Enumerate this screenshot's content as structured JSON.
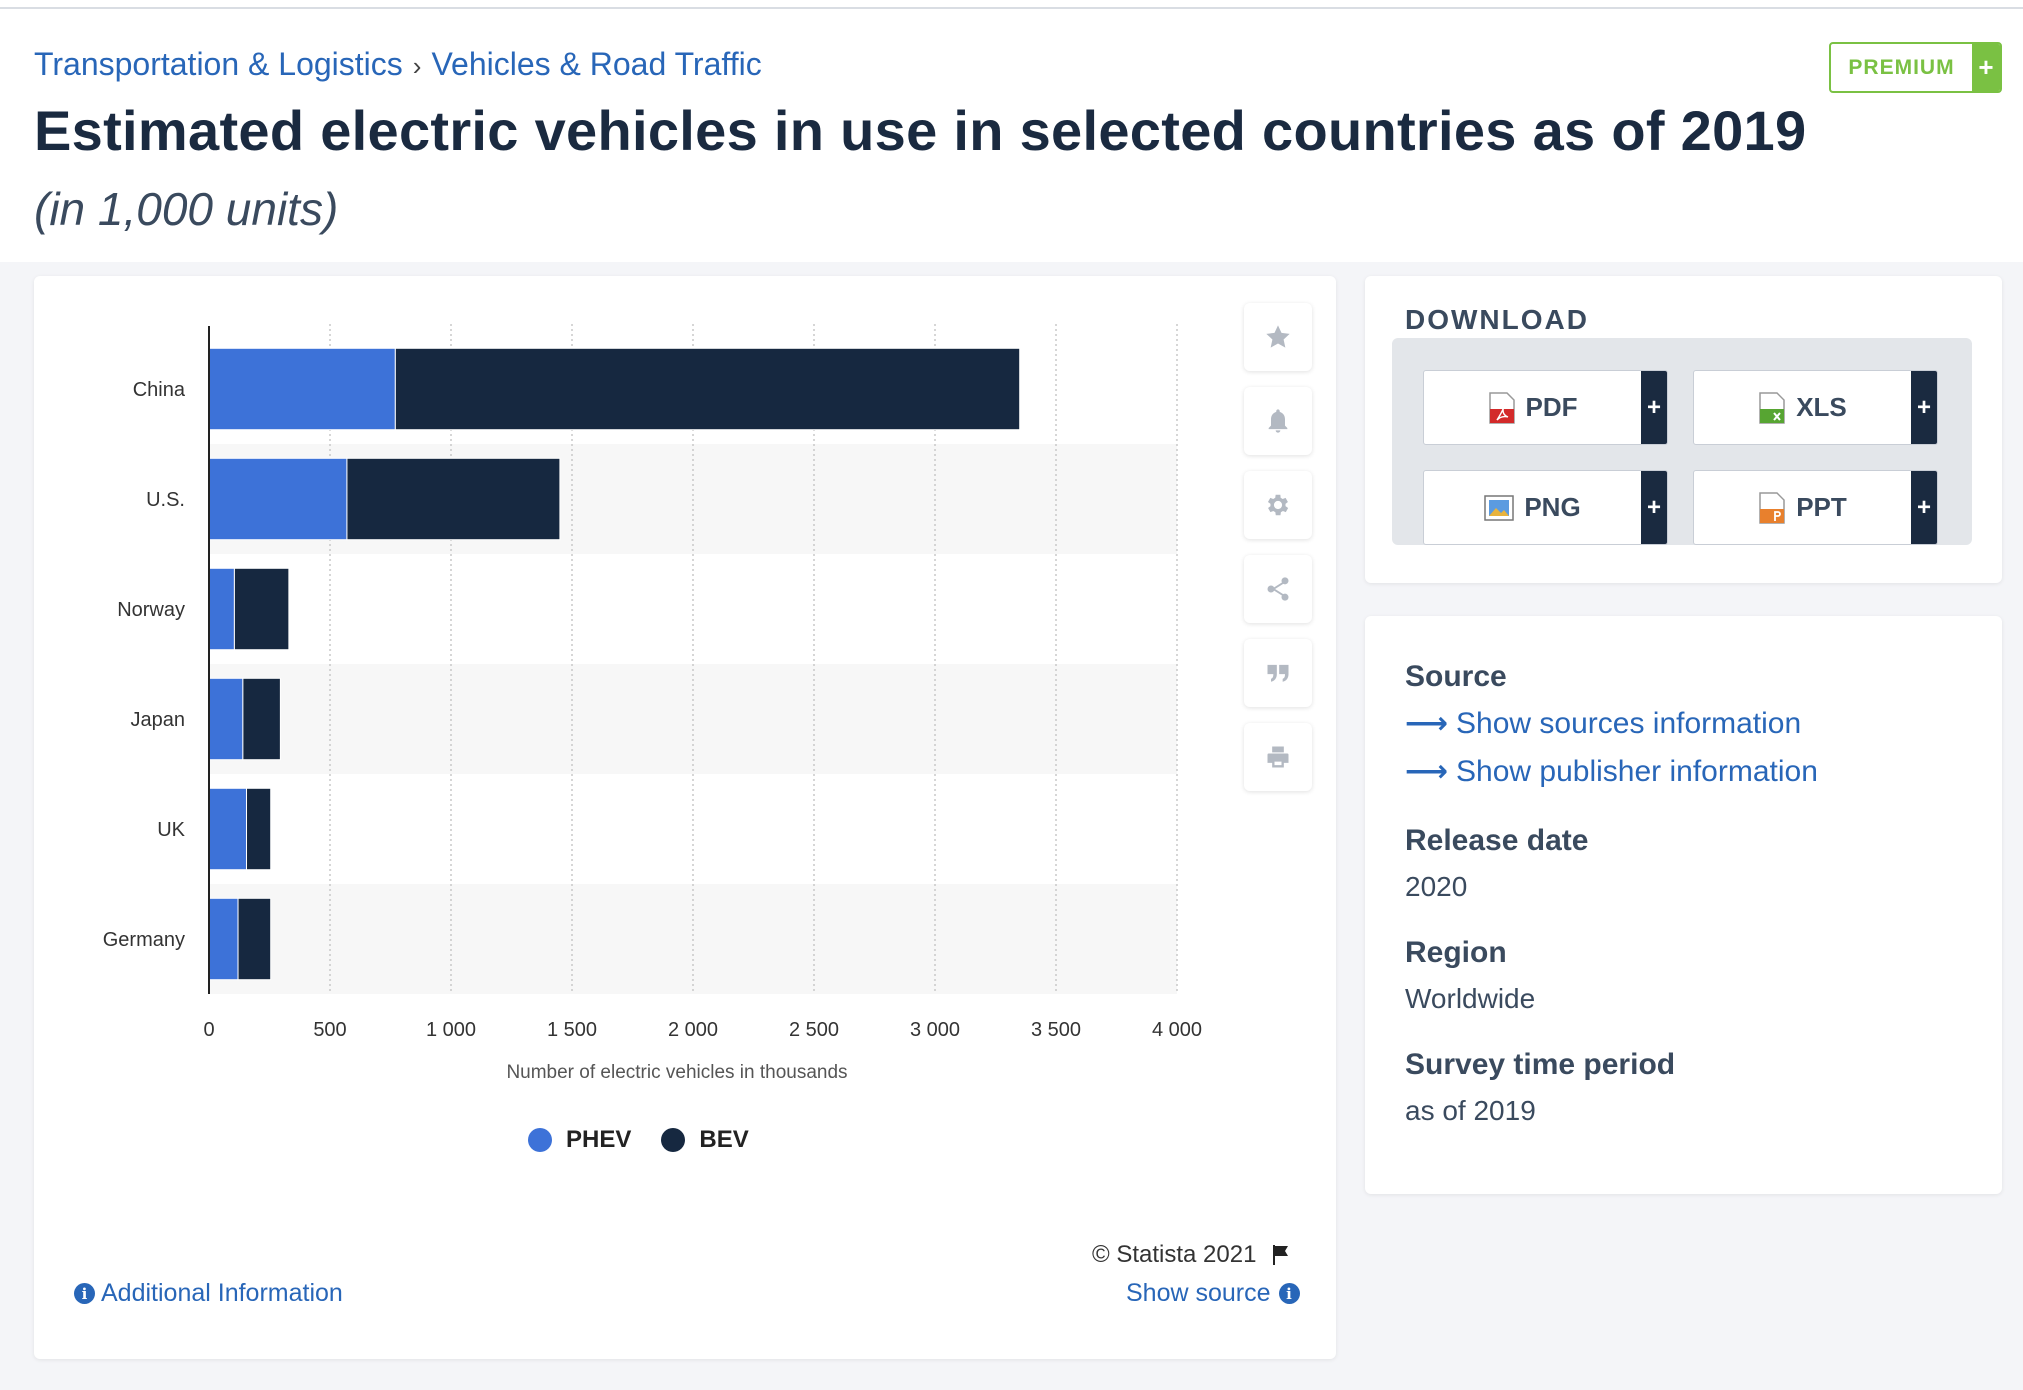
{
  "breadcrumb": {
    "items": [
      "Transportation & Logistics",
      "Vehicles & Road Traffic"
    ],
    "separator": "›"
  },
  "premium": {
    "label": "PREMIUM",
    "plus": "+",
    "color": "#7ac143"
  },
  "header": {
    "title": "Estimated electric vehicles in use in selected countries as of 2019",
    "subtitle": "(in 1,000 units)"
  },
  "chart_data": {
    "type": "bar",
    "orientation": "horizontal",
    "stacked": true,
    "categories": [
      "China",
      "U.S.",
      "Norway",
      "Japan",
      "UK",
      "Germany"
    ],
    "series": [
      {
        "name": "PHEV",
        "color": "#3d72d8",
        "values": [
          770,
          570,
          105,
          140,
          155,
          120
        ]
      },
      {
        "name": "BEV",
        "color": "#162840",
        "values": [
          2580,
          880,
          225,
          155,
          100,
          135
        ]
      }
    ],
    "xlabel": "Number of electric vehicles in thousands",
    "xlim": [
      0,
      4000
    ],
    "xticks": [
      0,
      500,
      1000,
      1500,
      2000,
      2500,
      3000,
      3500,
      4000
    ],
    "xtick_labels": [
      "0",
      "500",
      "1 000",
      "1 500",
      "2 000",
      "2 500",
      "3 000",
      "3 500",
      "4 000"
    ],
    "grid": "vertical dotted",
    "legend": "bottom"
  },
  "chart_tools": [
    "star-icon",
    "bell-icon",
    "gear-icon",
    "share-icon",
    "quote-icon",
    "print-icon"
  ],
  "footer": {
    "copyright": "© Statista 2021",
    "additional_info": "Additional Information",
    "show_source": "Show source",
    "info_glyph": "i"
  },
  "download": {
    "title": "DOWNLOAD",
    "buttons": [
      {
        "label": "PDF",
        "icon": "pdf-file-icon"
      },
      {
        "label": "XLS",
        "icon": "xls-file-icon"
      },
      {
        "label": "PNG",
        "icon": "png-file-icon"
      },
      {
        "label": "PPT",
        "icon": "ppt-file-icon"
      }
    ],
    "plus": "+"
  },
  "meta": {
    "source_label": "Source",
    "link_arrow": "⟶",
    "show_sources": "Show sources information",
    "show_publisher": "Show publisher information",
    "release_label": "Release date",
    "release_value": "2020",
    "region_label": "Region",
    "region_value": "Worldwide",
    "survey_label": "Survey time period",
    "survey_value": "as of 2019"
  },
  "colors": {
    "link": "#2866b8",
    "heading": "#1a2a40",
    "phev": "#3d72d8",
    "bev": "#162840"
  }
}
